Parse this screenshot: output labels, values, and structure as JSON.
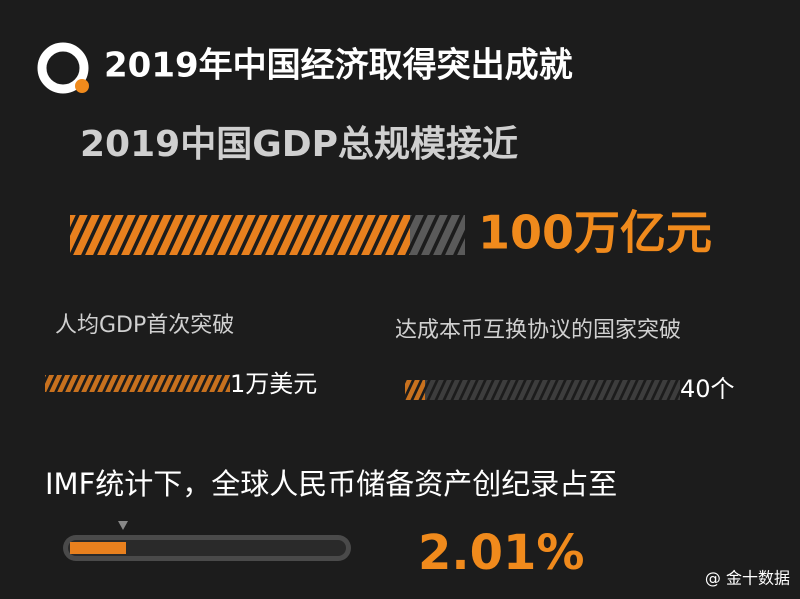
{
  "header": {
    "title": "2019年中国经济取得突出成就",
    "subtitle": "2019中国GDP总规模接近",
    "headline_value": "100万亿元"
  },
  "stats": [
    {
      "label": "人均GDP首次突破",
      "value": "1万美元"
    },
    {
      "label": "达成本币互换协议的国家突破",
      "value": "40个"
    }
  ],
  "footer": {
    "label": "IMF统计下，全球人民币储备资产创纪录占至",
    "value": "2.01%"
  },
  "brand": "@ 金十数据"
}
